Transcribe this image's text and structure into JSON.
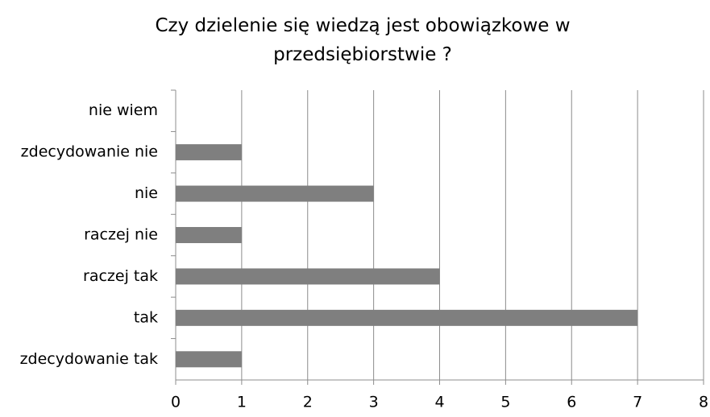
{
  "chart_data": {
    "type": "bar",
    "orientation": "horizontal",
    "title": "Czy dzielenie się wiedzą jest obowiązkowe w przedsiębiorstwie ?",
    "categories": [
      "nie wiem",
      "zdecydowanie nie",
      "nie",
      "raczej nie",
      "raczej tak",
      "tak",
      "zdecydowanie tak"
    ],
    "values": [
      0,
      1,
      3,
      1,
      4,
      7,
      1
    ],
    "color": "#7f7f7f",
    "xlim": [
      0,
      8
    ],
    "xticks": [
      0,
      1,
      2,
      3,
      4,
      5,
      6,
      7,
      8
    ],
    "grid": true
  }
}
